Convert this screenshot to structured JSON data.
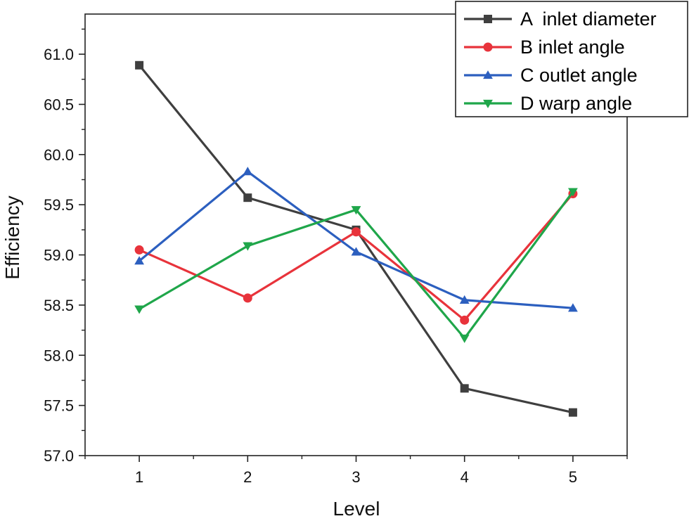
{
  "chart_data": {
    "type": "line",
    "title": "",
    "xlabel": "Level",
    "ylabel": "Efficiency",
    "x": [
      1,
      2,
      3,
      4,
      5
    ],
    "x_tick_labels": [
      "1",
      "2",
      "3",
      "4",
      "5"
    ],
    "xlim": [
      0.5,
      5.5
    ],
    "ylim": [
      57.0,
      61.4
    ],
    "y_ticks": [
      57.0,
      57.5,
      58.0,
      58.5,
      59.0,
      59.5,
      60.0,
      60.5,
      61.0
    ],
    "y_tick_labels": [
      "57.0",
      "57.5",
      "58.0",
      "58.5",
      "59.0",
      "59.5",
      "60.0",
      "60.5",
      "61.0"
    ],
    "grid": false,
    "legend_position": "top-right",
    "series": [
      {
        "name": "A  inlet diameter",
        "color": "#3f3f3f",
        "marker": "square",
        "values": [
          60.89,
          59.57,
          59.25,
          57.67,
          57.43
        ]
      },
      {
        "name": "B inlet angle",
        "color": "#e8333b",
        "marker": "circle",
        "values": [
          59.05,
          58.57,
          59.23,
          58.35,
          59.61
        ]
      },
      {
        "name": "C outlet angle",
        "color": "#2c5fbf",
        "marker": "triangle-up",
        "values": [
          58.94,
          59.83,
          59.03,
          58.55,
          58.47
        ]
      },
      {
        "name": "D warp angle",
        "color": "#1fa64a",
        "marker": "triangle-down",
        "values": [
          58.46,
          59.09,
          59.45,
          58.17,
          59.63
        ]
      }
    ]
  }
}
